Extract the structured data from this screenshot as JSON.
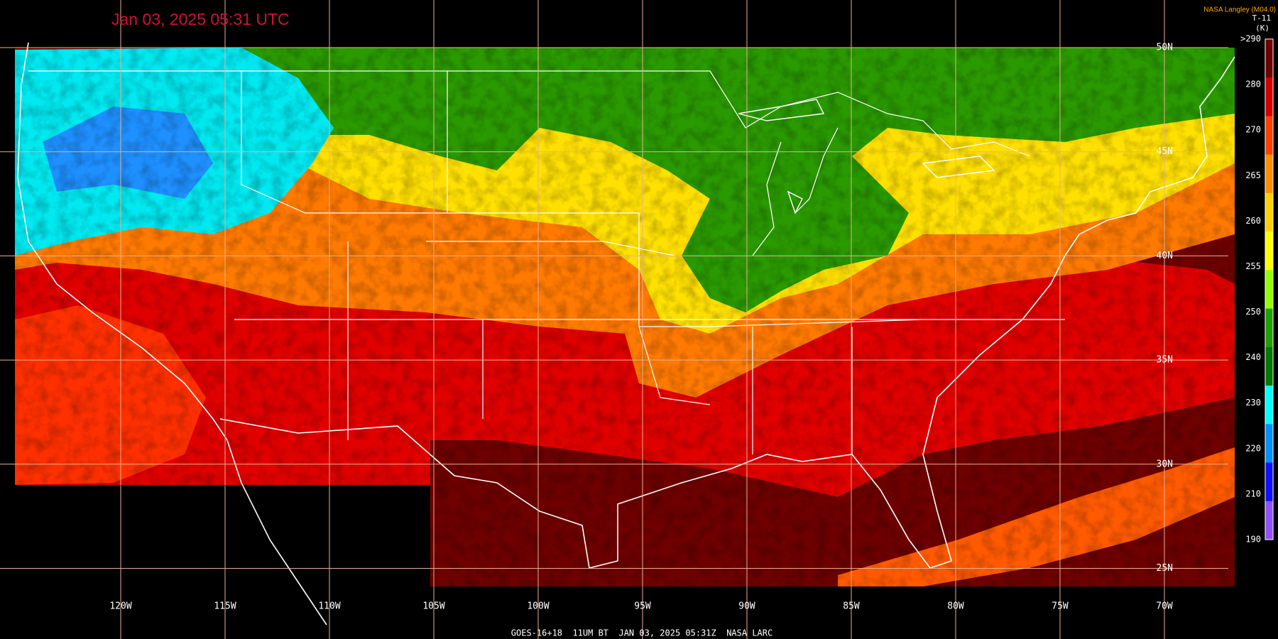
{
  "title": "Jan 03, 2025 05:31 UTC",
  "credit": "NASA Langley (M04.0)",
  "product": "T-11",
  "unit": "(K)",
  "colorbar": {
    "labels": [
      ">290",
      "280",
      "270",
      "265",
      "260",
      "255",
      "250",
      "240",
      "230",
      "220",
      "210",
      "190"
    ],
    "colors": [
      "#6e0000",
      "#d40000",
      "#ff4000",
      "#ff8c00",
      "#ffd000",
      "#ffff00",
      "#90ff00",
      "#20a000",
      "#007a00",
      "#00ffff",
      "#0090ff",
      "#1010ff",
      "#9050ff"
    ]
  },
  "longitude_labels": [
    "120W",
    "115W",
    "110W",
    "105W",
    "100W",
    "95W",
    "90W",
    "85W",
    "80W",
    "75W",
    "70W"
  ],
  "latitude_labels": [
    "50N",
    "45N",
    "40N",
    "35N",
    "30N",
    "25N"
  ],
  "footer": "GOES-16+18  11UM BT  JAN 03, 2025 05:31Z  NASA LARC"
}
